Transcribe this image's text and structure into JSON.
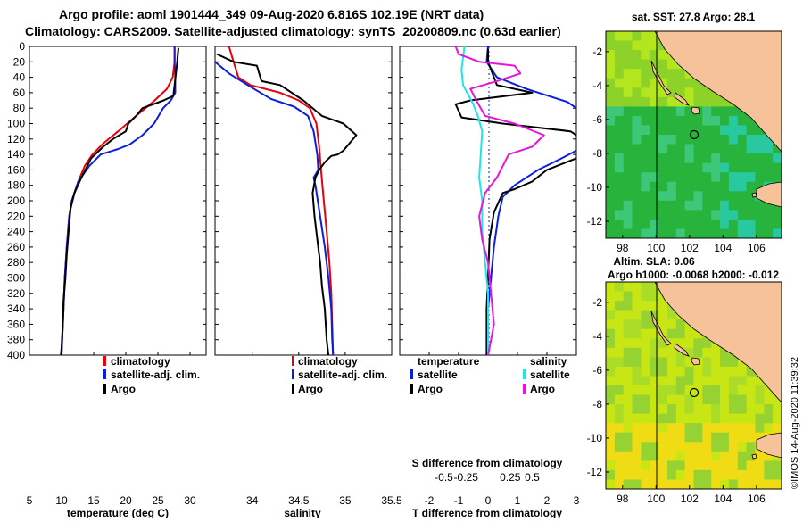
{
  "header": {
    "line1": "Argo profile: aoml 1901444_349 09-Aug-2020 6.816S 102.19E (NRT data)",
    "line2": "Climatology: CARS2009. Satellite-adjusted climatology: synTS_20200809.nc (0.63d earlier)"
  },
  "colors": {
    "climatology": "#e8000b",
    "satellite": "#0a1edc",
    "argo": "#000000",
    "satellite_salinity": "#1ee6e6",
    "argo_salinity": "#e614dc",
    "land": "#f5c29a",
    "sst_field": "#32c832",
    "sla_field": "#c8e614"
  },
  "chart_data": [
    {
      "type": "line",
      "id": "temperature",
      "xlabel": "temperature (deg C)",
      "xlim": [
        5,
        32.5
      ],
      "ylim": [
        0,
        400
      ],
      "y_inverted": true,
      "xticks": [
        5,
        10,
        15,
        20,
        25,
        30
      ],
      "yticks": [
        0,
        20,
        40,
        60,
        80,
        100,
        120,
        140,
        160,
        180,
        200,
        220,
        240,
        260,
        280,
        300,
        320,
        340,
        360,
        380,
        400
      ],
      "legend": [
        "climatology",
        "satellite-adj. clim.",
        "Argo"
      ],
      "series": [
        {
          "name": "climatology",
          "color": "#e8000b",
          "points": [
            [
              27.6,
              0
            ],
            [
              27.6,
              20
            ],
            [
              27.3,
              40
            ],
            [
              26.4,
              55
            ],
            [
              24.5,
              70
            ],
            [
              21.6,
              90
            ],
            [
              18.8,
              110
            ],
            [
              16.6,
              125
            ],
            [
              14.8,
              140
            ],
            [
              13.6,
              155
            ],
            [
              12.6,
              175
            ],
            [
              11.6,
              200
            ],
            [
              11.2,
              220
            ],
            [
              10.8,
              260
            ],
            [
              10.5,
              300
            ],
            [
              10.3,
              340
            ],
            [
              10.1,
              380
            ],
            [
              10.0,
              400
            ]
          ]
        },
        {
          "name": "satellite-adj. clim.",
          "color": "#0a1edc",
          "points": [
            [
              27.6,
              0
            ],
            [
              27.6,
              20
            ],
            [
              27.7,
              40
            ],
            [
              27.7,
              60
            ],
            [
              27.0,
              70
            ],
            [
              25.8,
              80
            ],
            [
              24.4,
              100
            ],
            [
              22.6,
              115
            ],
            [
              20.6,
              127
            ],
            [
              18.8,
              133
            ],
            [
              16.1,
              140
            ],
            [
              14.3,
              155
            ],
            [
              12.6,
              175
            ],
            [
              11.6,
              200
            ],
            [
              11.2,
              220
            ],
            [
              10.8,
              260
            ],
            [
              10.5,
              300
            ],
            [
              10.3,
              340
            ],
            [
              10.1,
              380
            ],
            [
              10.0,
              400
            ]
          ]
        },
        {
          "name": "Argo",
          "color": "#000000",
          "points": [
            [
              28.2,
              2
            ],
            [
              28.0,
              20
            ],
            [
              27.6,
              50
            ],
            [
              27.4,
              64
            ],
            [
              25.9,
              70
            ],
            [
              22.6,
              80
            ],
            [
              21.6,
              90
            ],
            [
              20.4,
              100
            ],
            [
              20.0,
              110
            ],
            [
              18.0,
              120
            ],
            [
              16.5,
              130
            ],
            [
              14.6,
              145
            ],
            [
              13.1,
              170
            ],
            [
              12.0,
              190
            ],
            [
              11.4,
              210
            ],
            [
              11.1,
              240
            ],
            [
              10.8,
              270
            ],
            [
              10.6,
              300
            ],
            [
              10.3,
              330
            ],
            [
              10.2,
              360
            ],
            [
              10.0,
              390
            ],
            [
              9.9,
              400
            ]
          ]
        }
      ]
    },
    {
      "type": "line",
      "id": "salinity",
      "xlabel": "salinity",
      "xlim": [
        33.6,
        35.5
      ],
      "ylim": [
        0,
        400
      ],
      "y_inverted": true,
      "xticks": [
        34,
        34.5,
        35,
        35.5
      ],
      "legend": [
        "climatology",
        "satellite-adj. clim.",
        "Argo"
      ],
      "series": [
        {
          "name": "climatology",
          "color": "#e8000b",
          "points": [
            [
              33.75,
              0
            ],
            [
              33.8,
              20
            ],
            [
              33.85,
              40
            ],
            [
              33.98,
              50
            ],
            [
              34.3,
              60
            ],
            [
              34.5,
              70
            ],
            [
              34.62,
              80
            ],
            [
              34.69,
              100
            ],
            [
              34.72,
              130
            ],
            [
              34.74,
              160
            ],
            [
              34.77,
              200
            ],
            [
              34.8,
              240
            ],
            [
              34.83,
              280
            ],
            [
              34.85,
              320
            ],
            [
              34.86,
              360
            ],
            [
              34.87,
              400
            ]
          ]
        },
        {
          "name": "satellite-adj. clim.",
          "color": "#0a1edc",
          "points": [
            [
              33.6,
              20
            ],
            [
              33.75,
              35
            ],
            [
              33.95,
              50
            ],
            [
              34.2,
              68
            ],
            [
              34.45,
              78
            ],
            [
              34.6,
              90
            ],
            [
              34.66,
              110
            ],
            [
              34.7,
              140
            ],
            [
              34.71,
              160
            ],
            [
              34.66,
              170
            ],
            [
              34.68,
              180
            ],
            [
              34.73,
              220
            ],
            [
              34.78,
              260
            ],
            [
              34.82,
              300
            ],
            [
              34.85,
              340
            ],
            [
              34.86,
              380
            ],
            [
              34.87,
              400
            ]
          ]
        },
        {
          "name": "Argo",
          "color": "#000000",
          "points": [
            [
              33.62,
              10
            ],
            [
              33.8,
              20
            ],
            [
              34.05,
              25
            ],
            [
              34.1,
              45
            ],
            [
              34.3,
              50
            ],
            [
              34.55,
              70
            ],
            [
              34.75,
              90
            ],
            [
              34.98,
              100
            ],
            [
              35.12,
              115
            ],
            [
              35.05,
              125
            ],
            [
              34.98,
              135
            ],
            [
              34.92,
              140
            ],
            [
              34.85,
              142
            ],
            [
              34.78,
              150
            ],
            [
              34.72,
              160
            ],
            [
              34.68,
              170
            ],
            [
              34.65,
              190
            ],
            [
              34.67,
              220
            ],
            [
              34.7,
              250
            ],
            [
              34.73,
              280
            ],
            [
              34.75,
              310
            ],
            [
              34.78,
              340
            ],
            [
              34.8,
              380
            ],
            [
              34.82,
              400
            ]
          ]
        }
      ]
    },
    {
      "type": "line",
      "id": "difference",
      "xlabel": "T difference from climatology",
      "secondary_xlabel": "S difference from climatology",
      "xlim": [
        -3,
        3
      ],
      "ylim": [
        0,
        400
      ],
      "y_inverted": true,
      "xticks": [
        -2,
        -1,
        0,
        1,
        2,
        3
      ],
      "xtick_labels": [
        "-2",
        "-1",
        "0",
        "1",
        "2",
        "3"
      ],
      "secondary_ticks": [
        -0.5,
        -0.25,
        0.25,
        0.5
      ],
      "secondary_tick_labels": [
        "-0.5",
        "-0.25",
        "0.25",
        "0.5"
      ],
      "legend_groups": [
        {
          "title": "temperature",
          "entries": [
            "satellite",
            "Argo"
          ]
        },
        {
          "title": "salinity",
          "entries": [
            "satellite",
            "Argo"
          ]
        }
      ],
      "series": [
        {
          "name": "temperature satellite",
          "color": "#0a1edc",
          "points": [
            [
              0.0,
              0
            ],
            [
              -0.05,
              20
            ],
            [
              0.3,
              40
            ],
            [
              1.3,
              55
            ],
            [
              2.7,
              72
            ],
            [
              3.0,
              80
            ]
          ]
        },
        {
          "name": "temperature satellite deep",
          "color": "#0a1edc",
          "points": [
            [
              3.0,
              135
            ],
            [
              2.5,
              145
            ],
            [
              1.7,
              160
            ],
            [
              0.9,
              180
            ],
            [
              0.5,
              195
            ],
            [
              0.35,
              220
            ],
            [
              0.2,
              260
            ],
            [
              0.1,
              300
            ],
            [
              0.0,
              340
            ],
            [
              0.0,
              400
            ]
          ]
        },
        {
          "name": "temperature Argo",
          "color": "#000000",
          "points": [
            [
              0.0,
              3
            ],
            [
              0.0,
              20
            ],
            [
              0.3,
              50
            ],
            [
              1.5,
              60
            ],
            [
              -0.6,
              70
            ],
            [
              -1.1,
              75
            ],
            [
              -0.9,
              92
            ],
            [
              0.5,
              100
            ],
            [
              2.8,
              110
            ],
            [
              3.0,
              115
            ]
          ]
        },
        {
          "name": "temperature Argo deep",
          "color": "#000000",
          "points": [
            [
              3.0,
              145
            ],
            [
              2.0,
              160
            ],
            [
              1.5,
              175
            ],
            [
              0.9,
              185
            ],
            [
              0.5,
              190
            ],
            [
              0.2,
              215
            ],
            [
              0.05,
              250
            ],
            [
              0.0,
              300
            ],
            [
              -0.05,
              340
            ],
            [
              -0.05,
              400
            ]
          ]
        },
        {
          "name": "salinity satellite",
          "color": "#1ee6e6",
          "points": [
            [
              -0.8,
              0
            ],
            [
              -0.9,
              30
            ],
            [
              -0.85,
              50
            ],
            [
              -0.5,
              75
            ],
            [
              -0.35,
              90
            ],
            [
              -0.2,
              110
            ],
            [
              -0.25,
              140
            ],
            [
              -0.3,
              170
            ],
            [
              -0.2,
              200
            ],
            [
              -0.2,
              240
            ],
            [
              -0.1,
              280
            ],
            [
              0.0,
              320
            ],
            [
              0.0,
              400
            ]
          ]
        },
        {
          "name": "salinity Argo",
          "color": "#e614dc",
          "points": [
            [
              -1.1,
              0
            ],
            [
              -1.0,
              10
            ],
            [
              -0.3,
              20
            ],
            [
              0.9,
              25
            ],
            [
              1.1,
              35
            ],
            [
              0.3,
              45
            ],
            [
              -0.6,
              55
            ],
            [
              -0.4,
              70
            ],
            [
              -0.1,
              90
            ],
            [
              0.9,
              100
            ],
            [
              1.9,
              115
            ],
            [
              1.5,
              130
            ],
            [
              0.7,
              140
            ],
            [
              0.5,
              155
            ],
            [
              0.3,
              170
            ],
            [
              -0.1,
              190
            ],
            [
              -0.3,
              220
            ],
            [
              -0.2,
              250
            ],
            [
              0.0,
              280
            ],
            [
              0.1,
              320
            ],
            [
              0.2,
              360
            ],
            [
              0.0,
              400
            ]
          ]
        }
      ]
    },
    {
      "type": "heatmap",
      "id": "sst_map",
      "title": "sat. SST: 27.8 Argo: 28.1",
      "xlim": [
        97,
        107.5
      ],
      "ylim": [
        -13,
        -0.8
      ],
      "xticks": [
        98,
        100,
        102,
        104,
        106
      ],
      "yticks": [
        -2,
        -4,
        -6,
        -8,
        -10,
        -12
      ],
      "marker": [
        102.19,
        -6.816
      ]
    },
    {
      "type": "heatmap",
      "id": "sla_map",
      "title1": "Altim. SLA: 0.06",
      "title2": "Argo h1000: -0.0068 h2000: -0.012",
      "xlim": [
        97,
        107.5
      ],
      "ylim": [
        -13,
        -0.8
      ],
      "xticks": [
        98,
        100,
        102,
        104,
        106
      ],
      "yticks": [
        -2,
        -4,
        -6,
        -8,
        -10,
        -12
      ],
      "marker": [
        102.19,
        -6.816
      ]
    }
  ],
  "footer": {
    "credit": "©IMOS 14-Aug-2020 11:39:32"
  }
}
